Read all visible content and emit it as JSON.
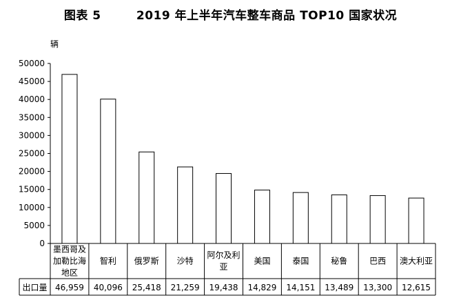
{
  "title": "图表 5        2019 年上半年汽车整车商品 TOP10 国家状况",
  "chart_data": {
    "type": "bar",
    "ylabel": "辆",
    "ylim": [
      0,
      50000
    ],
    "yticks": [
      0,
      5000,
      10000,
      15000,
      20000,
      25000,
      30000,
      35000,
      40000,
      45000,
      50000
    ],
    "categories": [
      [
        "墨西哥及",
        "加勒比海",
        "地区"
      ],
      [
        "智利"
      ],
      [
        "俄罗斯"
      ],
      [
        "沙特"
      ],
      [
        "阿尔及利",
        "亚"
      ],
      [
        "美国"
      ],
      [
        "泰国"
      ],
      [
        "秘鲁"
      ],
      [
        "巴西"
      ],
      [
        "澳大利亚"
      ]
    ],
    "series": [
      {
        "name": "出口量",
        "values": [
          46959,
          40096,
          25418,
          21259,
          19438,
          14829,
          14151,
          13489,
          13300,
          12615
        ],
        "labels": [
          "46,959",
          "40,096",
          "25,418",
          "21,259",
          "19,438",
          "14,829",
          "14,151",
          "13,489",
          "13,300",
          "12,615"
        ]
      }
    ],
    "grid": false,
    "colors": {
      "bar_fill": "#ffffff",
      "bar_stroke": "#000000",
      "axis": "#000000"
    }
  }
}
